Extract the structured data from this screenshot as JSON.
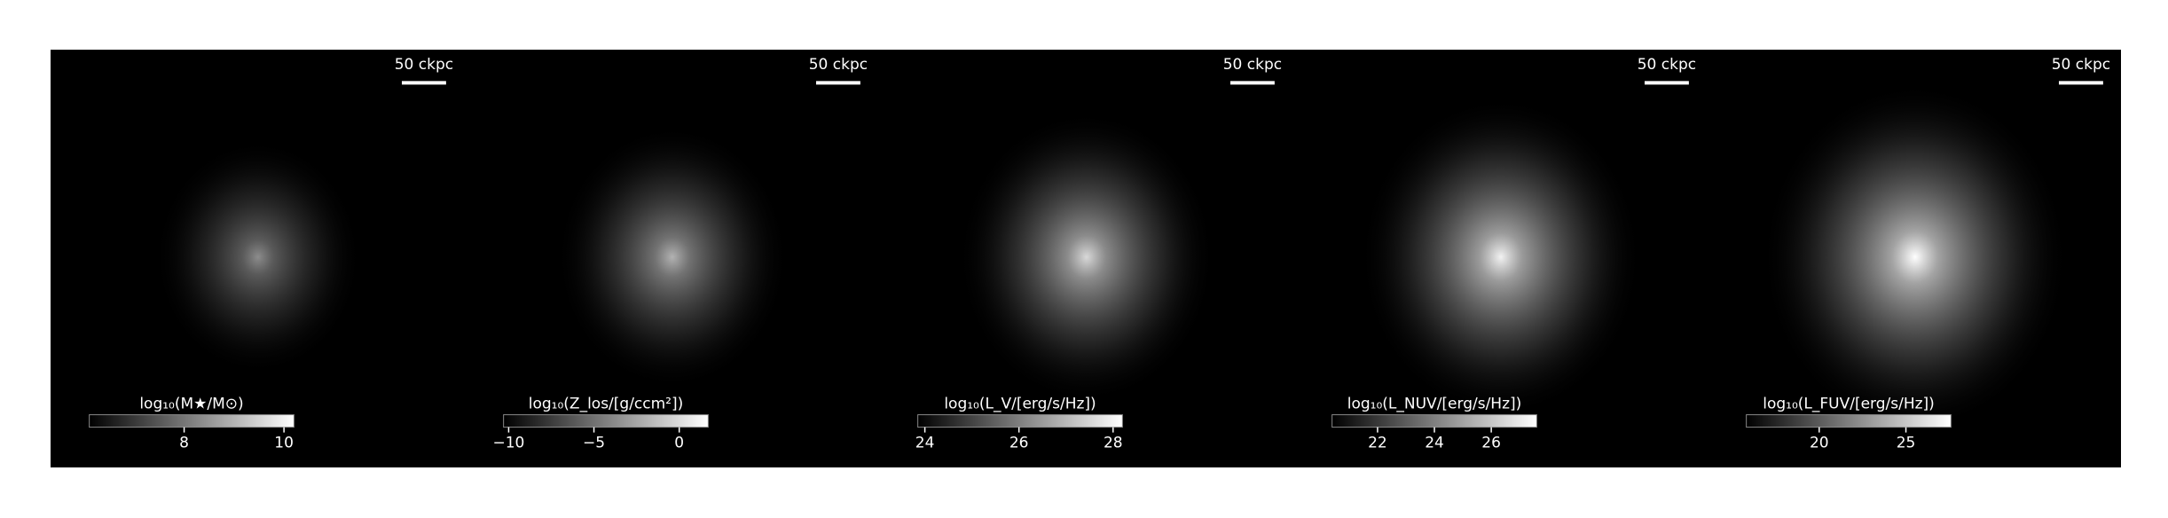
{
  "chart_data": [
    {
      "type": "image",
      "scalebar": "50 ckpc",
      "colorbar_label": "log₁₀(M★/M⊙)",
      "clim": [
        6.1,
        10.2
      ],
      "cticks": [
        8,
        10
      ]
    },
    {
      "type": "image",
      "scalebar": "50 ckpc",
      "colorbar_label": "log₁₀(Z_los/[g/ccm²])",
      "clim": [
        -10.3,
        1.7
      ],
      "cticks": [
        {
          "value": -10,
          "label": "−10"
        },
        {
          "value": -5,
          "label": "−5"
        },
        0
      ]
    },
    {
      "type": "image",
      "scalebar": "50 ckpc",
      "colorbar_label": "log₁₀(L_V/[erg/s/Hz])",
      "clim": [
        23.85,
        28.2
      ],
      "cticks": [
        24,
        26,
        28
      ]
    },
    {
      "type": "image",
      "scalebar": "50 ckpc",
      "colorbar_label": "log₁₀(L_NUV/[erg/s/Hz])",
      "clim": [
        20.4,
        27.6
      ],
      "cticks": [
        22,
        24,
        26
      ]
    },
    {
      "type": "image",
      "scalebar": "50 ckpc",
      "colorbar_label": "log₁₀(L_FUV/[erg/s/Hz])",
      "clim": [
        15.8,
        27.6
      ],
      "cticks": [
        20,
        25
      ]
    }
  ]
}
